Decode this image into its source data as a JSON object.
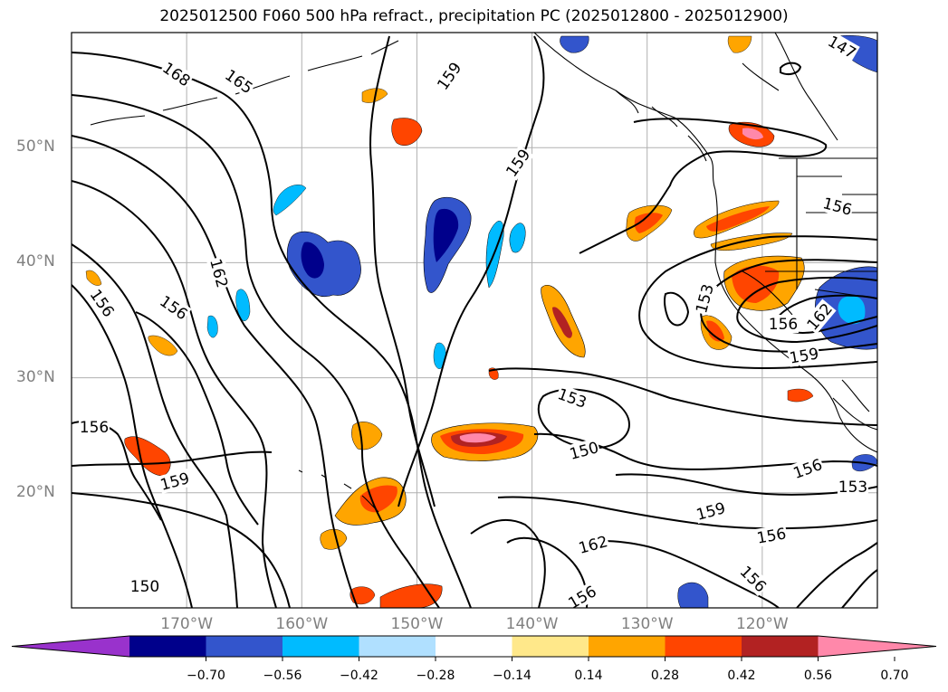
{
  "title": "2025012500 F060 500 hPa refract., precipitation PC (2025012800 - 2025012900)",
  "map": {
    "projection": "lat-lon",
    "extent": {
      "lon_min": -180,
      "lon_max": -110,
      "lat_min": 10,
      "lat_max": 60
    },
    "lat_ticks": [
      "20°N",
      "30°N",
      "40°N",
      "50°N"
    ],
    "lon_ticks": [
      "170°W",
      "160°W",
      "150°W",
      "140°W",
      "130°W",
      "120°W"
    ],
    "grid": true,
    "contour_field": "500 hPa refractivity",
    "contour_labels": [
      "168",
      "165",
      "159",
      "159",
      "162",
      "156",
      "156",
      "156",
      "159",
      "150",
      "147",
      "156",
      "153",
      "156",
      "162",
      "159",
      "153",
      "150",
      "156",
      "153",
      "159",
      "162",
      "156",
      "156",
      "156"
    ]
  },
  "colorbar": {
    "ticks": [
      "−0.70",
      "−0.56",
      "−0.42",
      "−0.28",
      "−0.14",
      "0.14",
      "0.28",
      "0.42",
      "0.56",
      "0.70"
    ],
    "colors": [
      "#9932cc",
      "#00008b",
      "#3355cc",
      "#00bbff",
      "#b0e0ff",
      "#ffffff",
      "#ffe88a",
      "#ffa500",
      "#ff4500",
      "#b22222",
      "#ff88aa"
    ],
    "extend": "both"
  }
}
